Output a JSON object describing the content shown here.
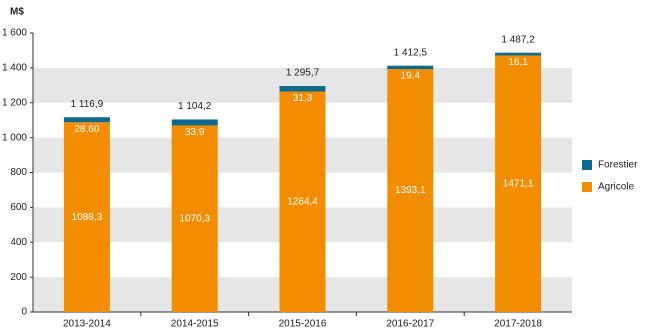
{
  "chart_data": {
    "type": "stacked_bar",
    "y_label": "M$",
    "categories": [
      "2013-2014",
      "2014-2015",
      "2015-2016",
      "2016-2017",
      "2017-2018"
    ],
    "series": [
      {
        "name": "Agricole",
        "color": "#f28c00",
        "values": [
          1088.3,
          1070.3,
          1264.4,
          1393.1,
          1471.1
        ],
        "value_labels": [
          "1088,3",
          "1070,3",
          "1264,4",
          "1393,1",
          "1471,1"
        ]
      },
      {
        "name": "Forestier",
        "color": "#0e6a8a",
        "values": [
          28.6,
          33.9,
          31.3,
          19.4,
          16.1
        ],
        "value_labels": [
          "28,60",
          "33,9",
          "31,3",
          "19,4",
          "16,1"
        ]
      }
    ],
    "totals": {
      "values": [
        1116.9,
        1104.2,
        1295.7,
        1412.5,
        1487.2
      ],
      "value_labels": [
        "1 116,9",
        "1 104,2",
        "1 295,7",
        "1 412,5",
        "1 487,2"
      ]
    },
    "ylim": [
      0,
      1600
    ],
    "yticks": [
      0,
      200,
      400,
      600,
      800,
      {
        "value": 1000,
        "label": "1 000"
      },
      {
        "value": 1200,
        "label": "1 200"
      },
      {
        "value": 1400,
        "label": "1 400"
      },
      {
        "value": 1600,
        "label": "1 600"
      }
    ],
    "grid": "bands"
  }
}
